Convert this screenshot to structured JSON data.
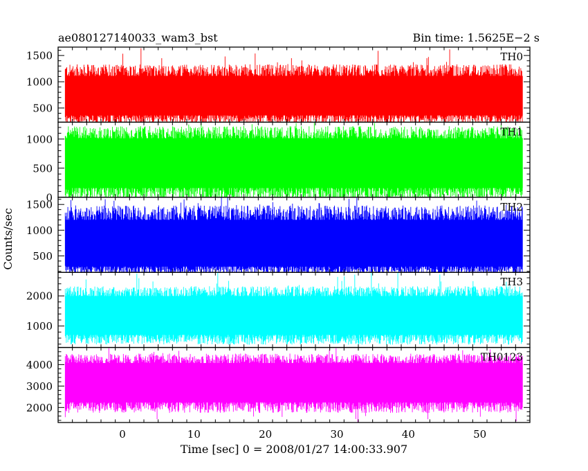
{
  "header": {
    "left_title": "ae080127140033_wam3_bst",
    "right_title": "Bin time: 1.5625E−2 s"
  },
  "xlabel": "Time [sec] 0 = 2008/01/27 14:00:33.907",
  "ylabel": "Counts/sec",
  "chart_data": {
    "type": "line",
    "title": "ae080127140033_wam3_bst",
    "subtitle": "Bin time: 1.5625E−2 s",
    "xlabel": "Time [sec] 0 = 2008/01/27 14:00:33.907",
    "ylabel": "Counts/sec",
    "xlim": [
      -9,
      57
    ],
    "data_x_range": [
      -8,
      56
    ],
    "bin_time_s": 0.015625,
    "x_ticks": [
      0,
      10,
      20,
      30,
      40,
      50
    ],
    "legend": "none",
    "grid": false,
    "panels": [
      {
        "name": "TH0",
        "color": "#ff0000",
        "ylim": [
          230,
          1660
        ],
        "y_ticks": [
          500,
          1000,
          1500
        ],
        "series_summary": {
          "baseline": 680,
          "typical_low": 330,
          "typical_high": 1150,
          "min": 230,
          "max": 1660
        }
      },
      {
        "name": "TH1",
        "color": "#00ff00",
        "ylim": [
          0,
          1290
        ],
        "y_ticks": [
          0,
          500,
          1000
        ],
        "series_summary": {
          "baseline": 600,
          "typical_low": 120,
          "typical_high": 1050,
          "min": 30,
          "max": 1290
        }
      },
      {
        "name": "TH2",
        "color": "#0000ff",
        "ylim": [
          180,
          1640
        ],
        "y_ticks": [
          500,
          1000,
          1500
        ],
        "series_summary": {
          "baseline": 650,
          "typical_low": 260,
          "typical_high": 1250,
          "min": 180,
          "max": 1640
        }
      },
      {
        "name": "TH3",
        "color": "#00ffff",
        "ylim": [
          290,
          2780
        ],
        "y_ticks": [
          1000,
          2000
        ],
        "series_summary": {
          "baseline": 1350,
          "typical_low": 650,
          "typical_high": 2050,
          "min": 400,
          "max": 2780
        }
      },
      {
        "name": "TH0123",
        "color": "#ff00ff",
        "ylim": [
          1300,
          4800
        ],
        "y_ticks": [
          2000,
          3000,
          4000
        ],
        "series_summary": {
          "baseline": 3200,
          "typical_low": 2150,
          "typical_high": 4150,
          "min": 1300,
          "max": 4800
        }
      }
    ]
  }
}
